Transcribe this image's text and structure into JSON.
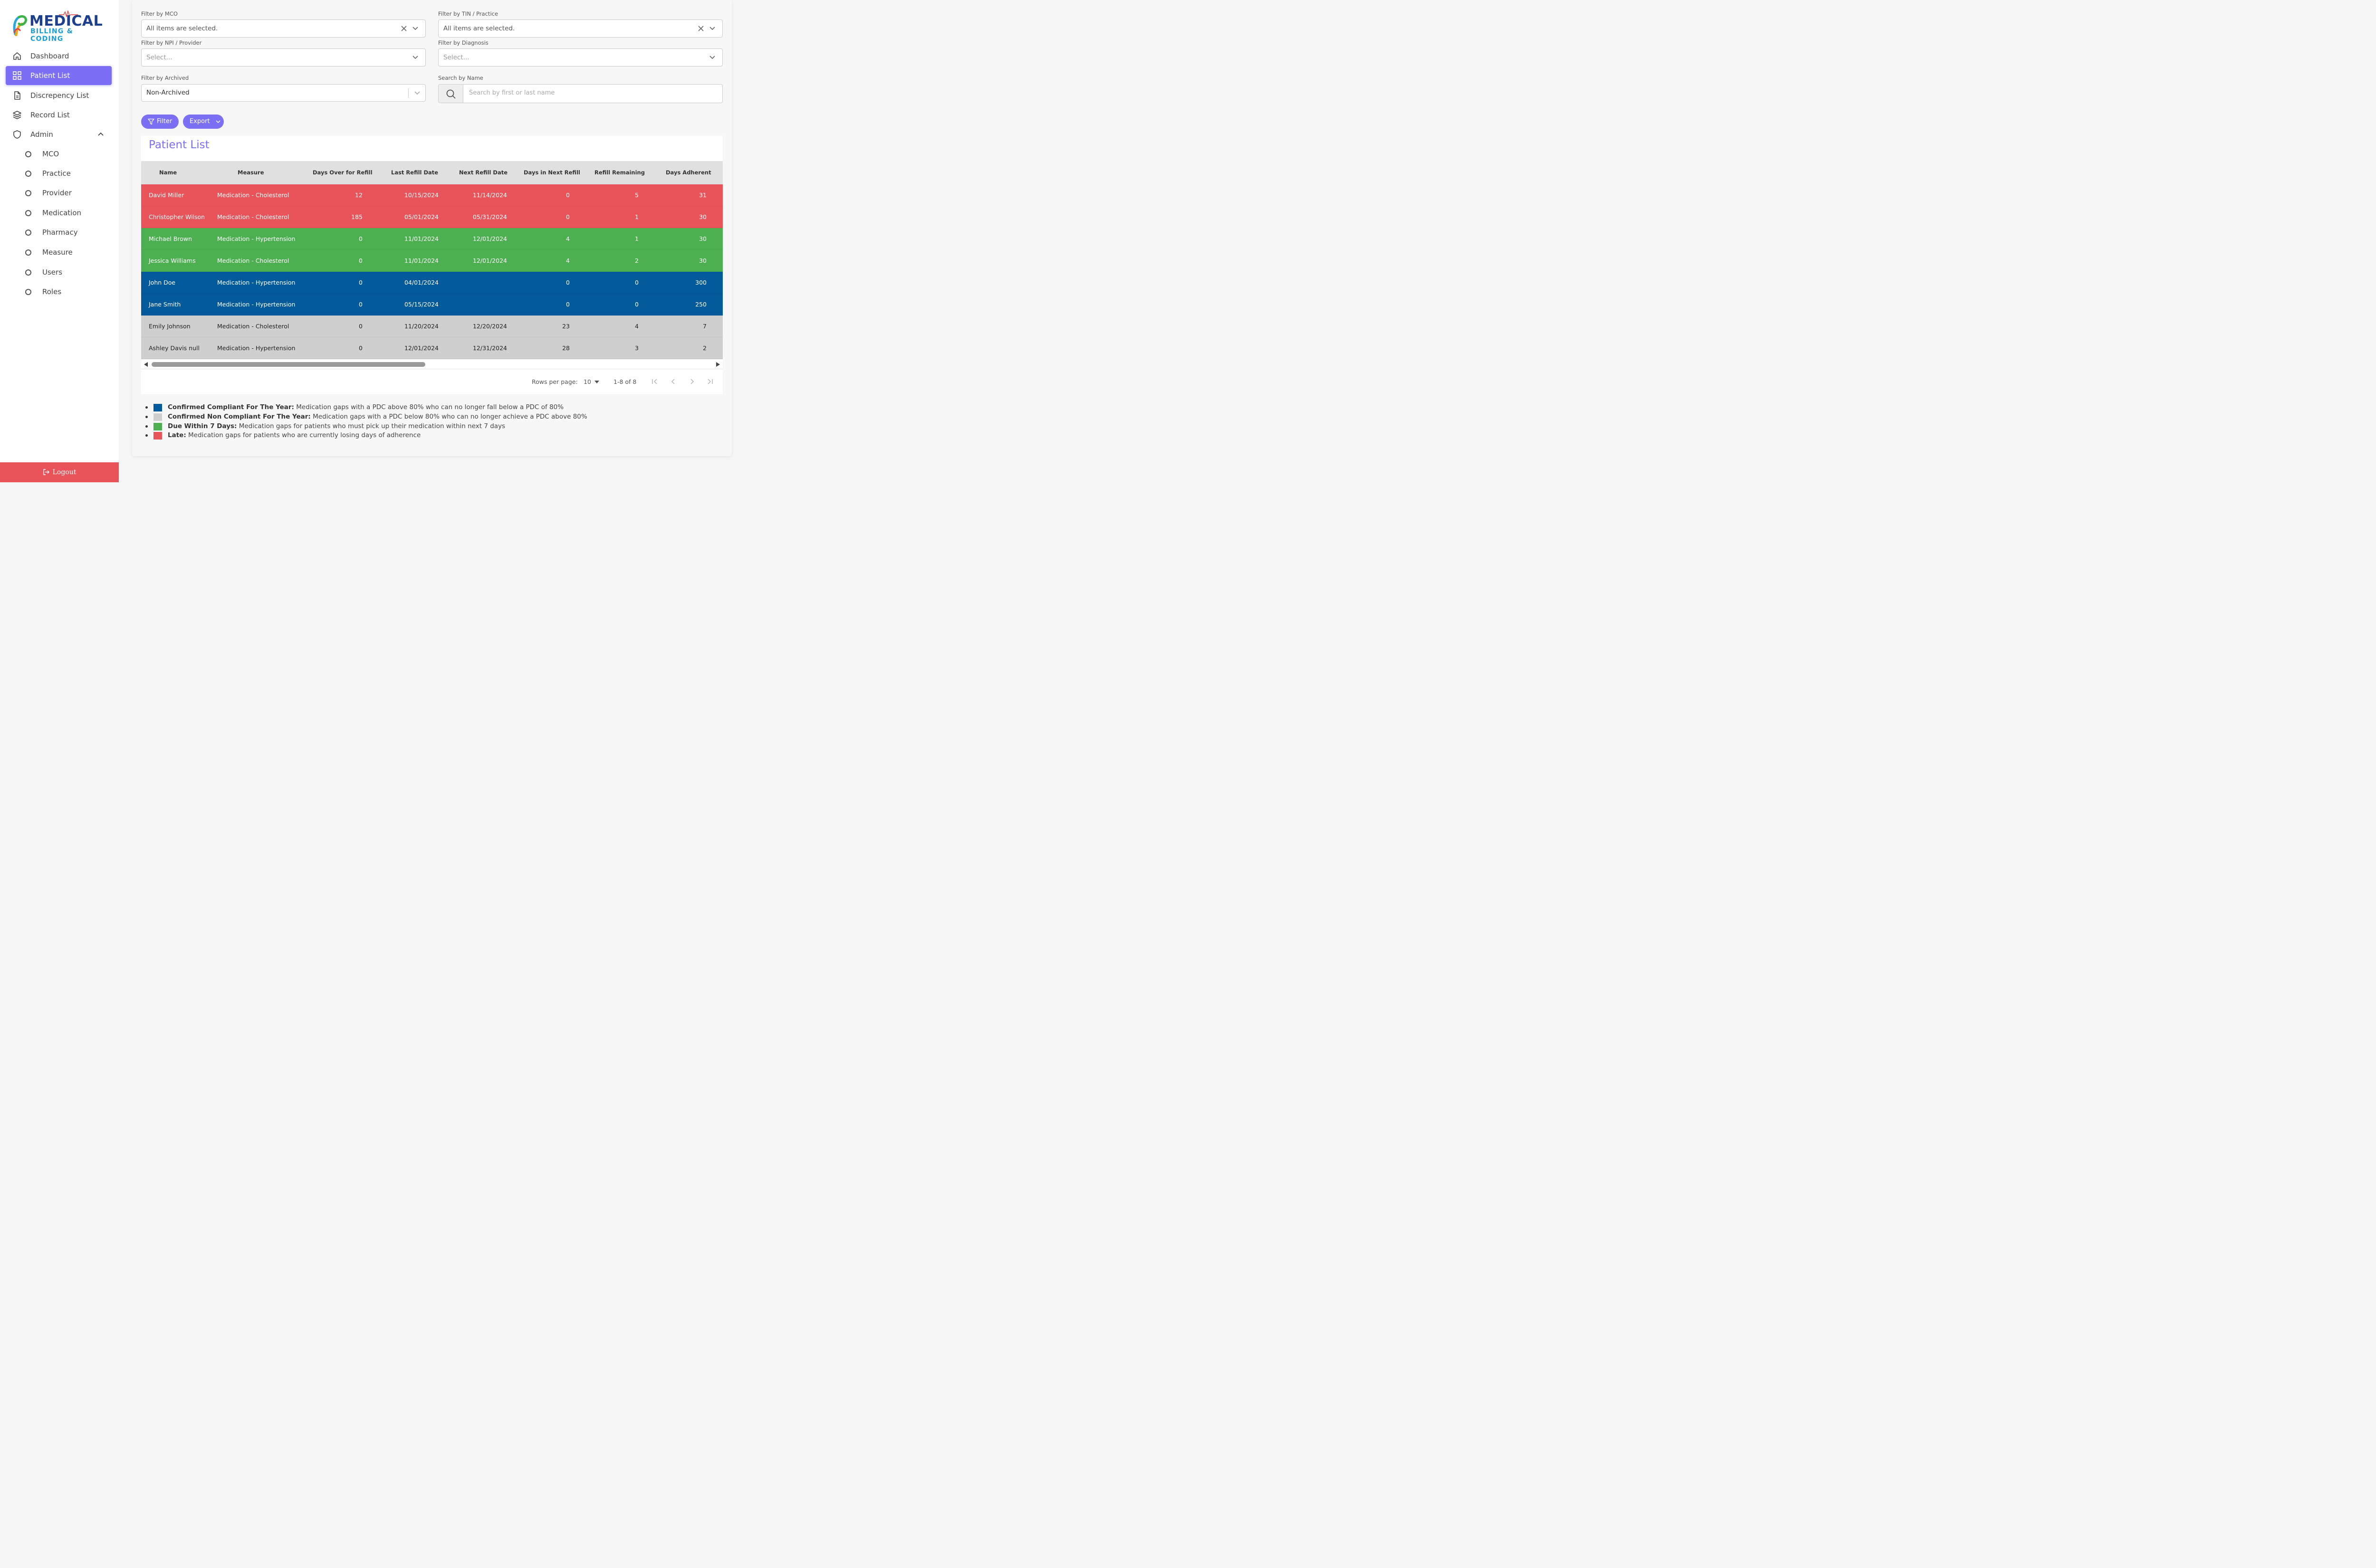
{
  "brand": {
    "title": "MEDICAL",
    "subtitle": "BILLING & CODING"
  },
  "nav": [
    {
      "label": "Dashboard",
      "icon": "home-icon"
    },
    {
      "label": "Patient List",
      "icon": "grid-icon",
      "active": true
    },
    {
      "label": "Discrepency List",
      "icon": "file-icon"
    },
    {
      "label": "Record List",
      "icon": "layers-icon"
    },
    {
      "label": "Admin",
      "icon": "shield-icon",
      "expanded": true
    }
  ],
  "admin_items": [
    "MCO",
    "Practice",
    "Provider",
    "Medication",
    "Pharmacy",
    "Measure",
    "Users",
    "Roles"
  ],
  "logout_label": "Logout",
  "filters": {
    "mco": {
      "label": "Filter by MCO",
      "value": "All items are selected."
    },
    "tin": {
      "label": "Filter by TIN / Practice",
      "value": "All items are selected."
    },
    "npi": {
      "label": "Filter by NPI / Provider",
      "placeholder": "Select..."
    },
    "diagnosis": {
      "label": "Filter by Diagnosis",
      "placeholder": "Select..."
    },
    "archived": {
      "label": "Filter by Archived",
      "value": "Non-Archived"
    },
    "search": {
      "label": "Search by Name",
      "placeholder": "Search by first or last name"
    }
  },
  "buttons": {
    "filter": "Filter",
    "export": "Export"
  },
  "table": {
    "title": "Patient List",
    "columns": [
      "Name",
      "Measure",
      "Days Over for Refill",
      "Last Refill Date",
      "Next Refill Date",
      "Days in Next Refill",
      "Refill Remaining",
      "Days Adherent"
    ],
    "rows": [
      {
        "status": "late",
        "cells": [
          "David Miller",
          "Medication - Cholesterol",
          "12",
          "10/15/2024",
          "11/14/2024",
          "0",
          "5",
          "31"
        ]
      },
      {
        "status": "late",
        "cells": [
          "Christopher Wilson",
          "Medication - Cholesterol",
          "185",
          "05/01/2024",
          "05/31/2024",
          "0",
          "1",
          "30"
        ]
      },
      {
        "status": "due",
        "cells": [
          "Michael Brown",
          "Medication - Hypertension",
          "0",
          "11/01/2024",
          "12/01/2024",
          "4",
          "1",
          "30"
        ]
      },
      {
        "status": "due",
        "cells": [
          "Jessica Williams",
          "Medication - Cholesterol",
          "0",
          "11/01/2024",
          "12/01/2024",
          "4",
          "2",
          "30"
        ]
      },
      {
        "status": "compliant",
        "cells": [
          "John Doe",
          "Medication - Hypertension",
          "0",
          "04/01/2024",
          "",
          "0",
          "0",
          "300"
        ]
      },
      {
        "status": "compliant",
        "cells": [
          "Jane Smith",
          "Medication - Hypertension",
          "0",
          "05/15/2024",
          "",
          "0",
          "0",
          "250"
        ]
      },
      {
        "status": "noncompliant",
        "cells": [
          "Emily Johnson",
          "Medication - Cholesterol",
          "0",
          "11/20/2024",
          "12/20/2024",
          "23",
          "4",
          "7"
        ]
      },
      {
        "status": "noncompliant",
        "cells": [
          "Ashley Davis null",
          "Medication - Hypertension",
          "0",
          "12/01/2024",
          "12/31/2024",
          "28",
          "3",
          "2"
        ]
      }
    ]
  },
  "pagination": {
    "rows_label": "Rows per page:",
    "rows_value": "10",
    "range": "1-8 of 8"
  },
  "status_colors": {
    "late": "#e9545a",
    "due": "#4caf50",
    "compliant": "#035a9a",
    "noncompliant": "#cfcfcf"
  },
  "legend": [
    {
      "status": "compliant",
      "title": "Confirmed Compliant For The Year:",
      "text": "Medication gaps with a PDC above 80% who can no longer fall below a PDC of 80%"
    },
    {
      "status": "noncompliant",
      "title": "Confirmed Non Compliant For The Year:",
      "text": "Medication gaps with a PDC below 80% who can no longer achieve a PDC above 80%"
    },
    {
      "status": "due",
      "title": "Due Within 7 Days:",
      "text": "Medication gaps for patients who must pick up their medication within next 7 days"
    },
    {
      "status": "late",
      "title": "Late:",
      "text": "Medication gaps for patients who are currently losing days of adherence"
    }
  ]
}
